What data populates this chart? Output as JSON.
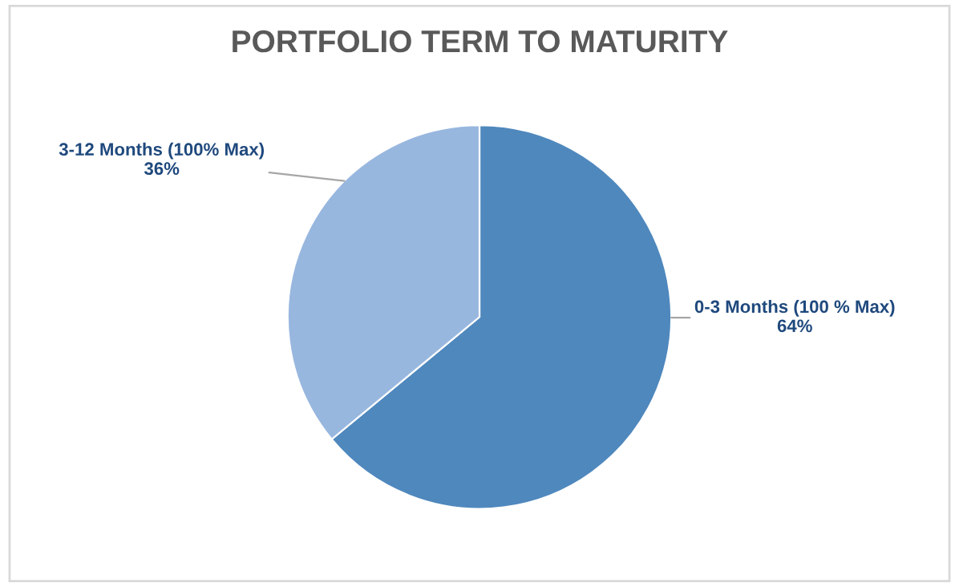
{
  "chart_data": {
    "type": "pie",
    "title": "PORTFOLIO TERM TO MATURITY",
    "categories": [
      "0-3 Months (100 % Max)",
      "3-12 Months (100% Max)"
    ],
    "values": [
      64,
      36
    ],
    "value_labels": [
      "64%",
      "36%"
    ],
    "colors": [
      "#4f88bd",
      "#98b7df"
    ]
  }
}
